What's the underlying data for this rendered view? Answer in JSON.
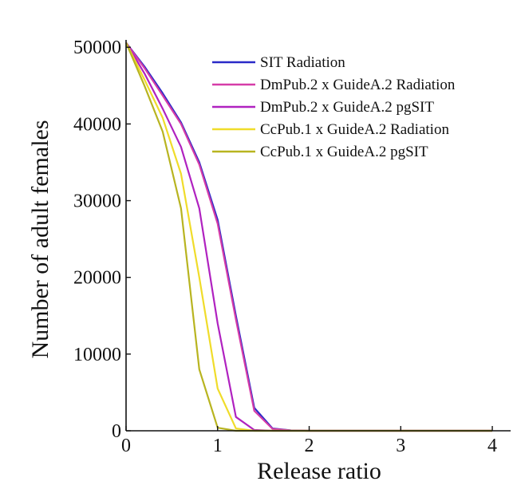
{
  "chart_data": {
    "type": "line",
    "xlabel": "Release ratio",
    "ylabel": "Number of adult females",
    "xlim": [
      0,
      4.2
    ],
    "ylim": [
      0,
      52000
    ],
    "xticks": [
      0,
      1,
      2,
      3,
      4
    ],
    "xtick_labels": [
      "0",
      "1",
      "2",
      "3",
      "4"
    ],
    "yticks": [
      0,
      10000,
      20000,
      30000,
      40000,
      50000
    ],
    "ytick_labels": [
      "0",
      "10000",
      "20000",
      "30000",
      "40000",
      "50000"
    ],
    "legend_position": "top-right",
    "x": [
      0,
      0.2,
      0.4,
      0.6,
      0.8,
      1.0,
      1.2,
      1.4,
      1.6,
      1.8,
      2.0,
      2.5,
      3.0,
      3.5,
      4.0
    ],
    "series": [
      {
        "name": "SIT Radiation",
        "color": "#2a2ac8",
        "values": [
          50600,
          47500,
          44000,
          40200,
          35000,
          27500,
          15000,
          3000,
          300,
          50,
          0,
          0,
          0,
          0,
          0
        ]
      },
      {
        "name": "DmPub.2 x GuideA.2 Radiation",
        "color": "#d63ca8",
        "values": [
          50600,
          47300,
          43700,
          40000,
          34700,
          27000,
          14500,
          2600,
          250,
          40,
          0,
          0,
          0,
          0,
          0
        ]
      },
      {
        "name": "DmPub.2 x GuideA.2 pgSIT",
        "color": "#b022c0",
        "values": [
          50600,
          46600,
          42000,
          37000,
          29000,
          14000,
          1800,
          100,
          0,
          0,
          0,
          0,
          0,
          0,
          0
        ]
      },
      {
        "name": "CcPub.1 x GuideA.2 Radiation",
        "color": "#f0dc2a",
        "values": [
          50600,
          45800,
          40800,
          33500,
          20000,
          5500,
          300,
          0,
          0,
          0,
          0,
          0,
          0,
          0,
          0
        ]
      },
      {
        "name": "CcPub.1 x GuideA.2 pgSIT",
        "color": "#b8b420",
        "values": [
          50600,
          45000,
          39000,
          29000,
          8000,
          400,
          0,
          0,
          0,
          0,
          0,
          0,
          0,
          0,
          0
        ]
      }
    ]
  }
}
